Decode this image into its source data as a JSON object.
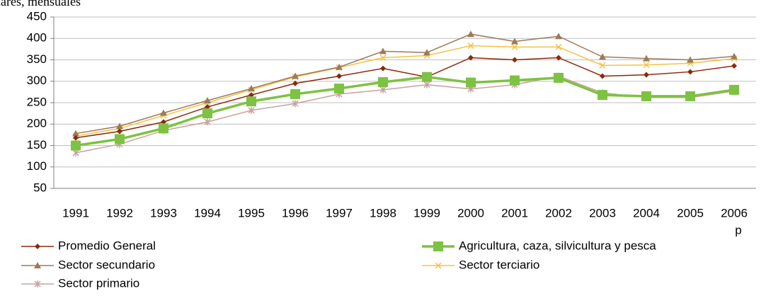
{
  "chart_data": {
    "type": "line",
    "title": "lares, mensuales",
    "categories": [
      "1991",
      "1992",
      "1993",
      "1994",
      "1995",
      "1996",
      "1997",
      "1998",
      "1999",
      "2000",
      "2001",
      "2002",
      "2003",
      "2004",
      "2005",
      "2006"
    ],
    "annotation": "p",
    "ylim": [
      50,
      450
    ],
    "yticks": [
      50,
      100,
      150,
      200,
      250,
      300,
      350,
      400,
      450
    ],
    "grid": true,
    "series": [
      {
        "name": "Promedio General",
        "color": "#8b2a0c",
        "marker": "diamond",
        "values": [
          168,
          183,
          205,
          240,
          268,
          295,
          312,
          330,
          310,
          355,
          350,
          355,
          312,
          315,
          322,
          336
        ]
      },
      {
        "name": "Agricultura, caza, silvicultura y pesca",
        "color": "#7dc242",
        "marker": "square",
        "values": [
          150,
          165,
          190,
          225,
          253,
          270,
          283,
          298,
          310,
          297,
          302,
          308,
          268,
          265,
          265,
          280
        ]
      },
      {
        "name": "Sector secundario",
        "color": "#9c7b5a",
        "marker": "triangle",
        "values": [
          178,
          195,
          226,
          255,
          283,
          312,
          333,
          370,
          367,
          410,
          393,
          405,
          357,
          353,
          350,
          358
        ]
      },
      {
        "name": "Sector terciario",
        "color": "#f5c242",
        "marker": "x",
        "values": [
          172,
          190,
          220,
          250,
          280,
          310,
          332,
          355,
          360,
          383,
          380,
          380,
          337,
          338,
          342,
          353
        ]
      },
      {
        "name": "Sector primario",
        "color": "#c9a0a0",
        "marker": "star",
        "values": [
          133,
          153,
          185,
          205,
          232,
          248,
          270,
          280,
          292,
          282,
          292,
          312,
          273,
          262,
          262,
          277
        ]
      }
    ]
  }
}
